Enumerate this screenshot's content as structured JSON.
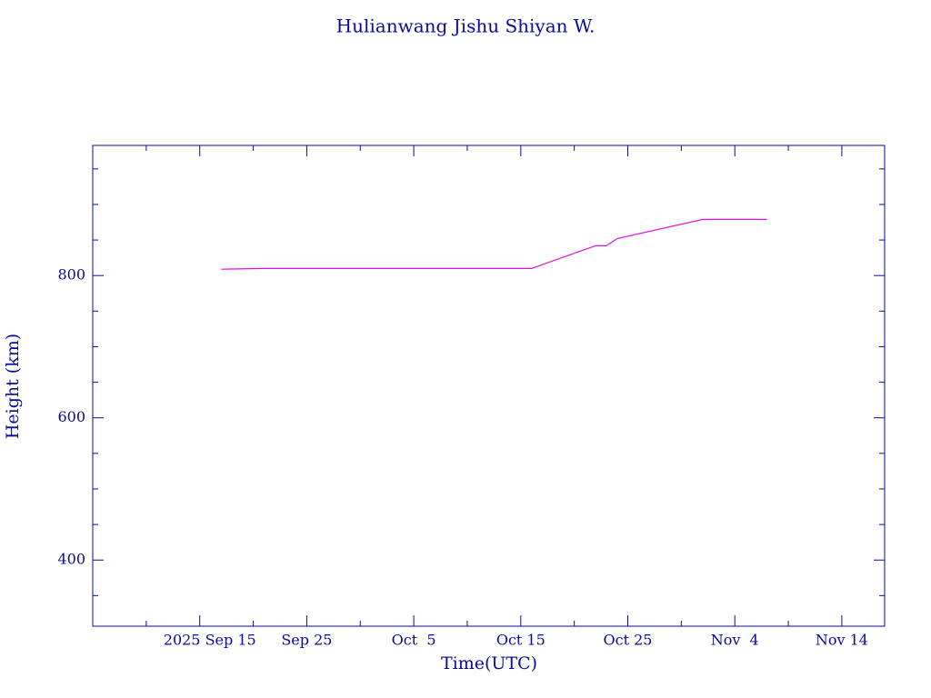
{
  "chart_data": {
    "type": "line",
    "title": "Hulianwang Jishu Shiyan W.",
    "x_label": "Time(UTC)",
    "y_label": "Height (km)",
    "series": [
      {
        "color": "#e010e0",
        "x": [
          "2025-09-17",
          "2025-09-21",
          "2025-10-16",
          "2025-10-22",
          "2025-10-23",
          "2025-10-24",
          "2025-11-01",
          "2025-11-07"
        ],
        "values": [
          809,
          810,
          810,
          842,
          842,
          852,
          879,
          879
        ]
      }
    ],
    "xlim": [
      "2025-09-05",
      "2025-11-18"
    ],
    "xticks": [
      {
        "value": "2025-09-15",
        "label": "2025 Sep 15"
      },
      {
        "value": "2025-09-25",
        "label": "Sep 25"
      },
      {
        "value": "2025-10-05",
        "label": "Oct  5"
      },
      {
        "value": "2025-10-15",
        "label": "Oct 15"
      },
      {
        "value": "2025-10-25",
        "label": "Oct 25"
      },
      {
        "value": "2025-11-04",
        "label": "Nov  4"
      },
      {
        "value": "2025-11-14",
        "label": "Nov 14"
      }
    ],
    "xticks_minor": [
      "2025-09-10",
      "2025-09-20",
      "2025-09-30",
      "2025-10-10",
      "2025-10-20",
      "2025-10-30",
      "2025-11-09"
    ],
    "ylim": [
      307,
      983
    ],
    "yticks": [
      400,
      600,
      800
    ],
    "yticks_minor": [
      350,
      450,
      500,
      550,
      650,
      700,
      750,
      850,
      900,
      950
    ],
    "axis_color": "#0a0a9a"
  }
}
